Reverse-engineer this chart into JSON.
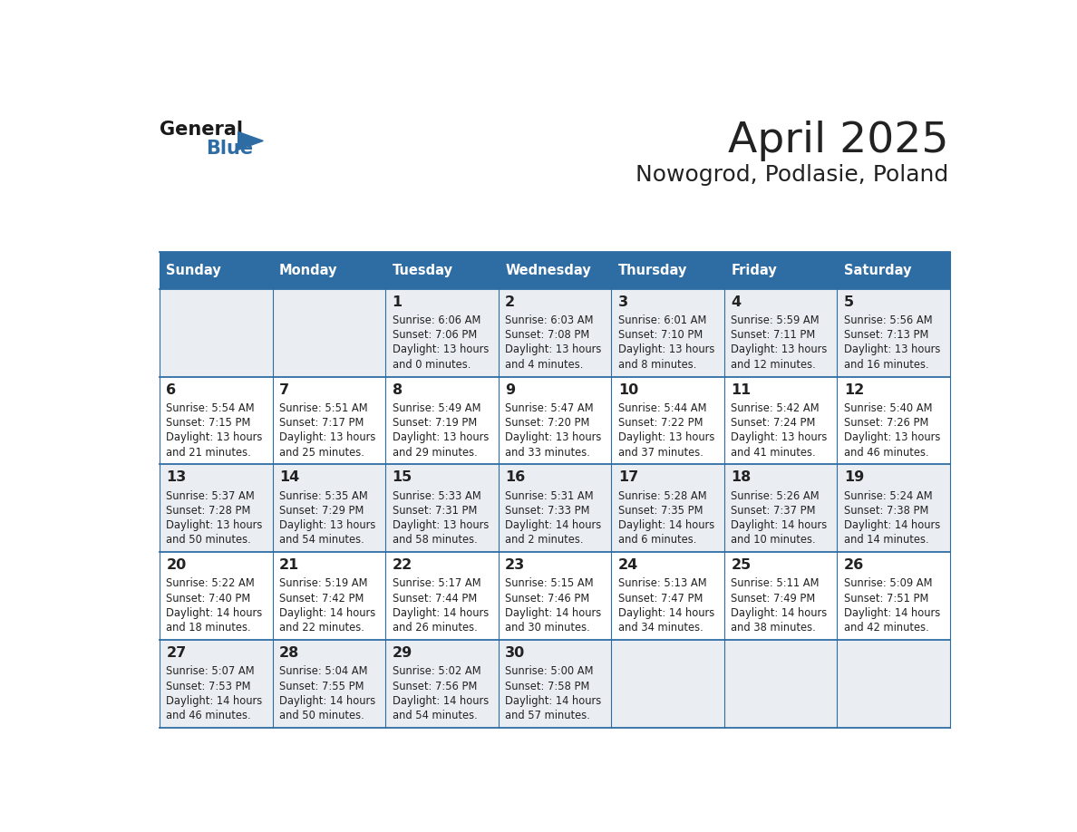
{
  "title": "April 2025",
  "subtitle": "Nowogrod, Podlasie, Poland",
  "days_of_week": [
    "Sunday",
    "Monday",
    "Tuesday",
    "Wednesday",
    "Thursday",
    "Friday",
    "Saturday"
  ],
  "header_bg": "#2E6DA4",
  "header_fg": "#FFFFFF",
  "row_bg_odd": "#EAEEF3",
  "row_bg_even": "#FFFFFF",
  "border_color": "#2E6DA4",
  "text_color": "#222222",
  "logo_general_color": "#1a1a1a",
  "logo_blue_color": "#2E6DA4",
  "weeks": [
    [
      {
        "day": null,
        "info": null
      },
      {
        "day": null,
        "info": null
      },
      {
        "day": 1,
        "info": "Sunrise: 6:06 AM\nSunset: 7:06 PM\nDaylight: 13 hours\nand 0 minutes."
      },
      {
        "day": 2,
        "info": "Sunrise: 6:03 AM\nSunset: 7:08 PM\nDaylight: 13 hours\nand 4 minutes."
      },
      {
        "day": 3,
        "info": "Sunrise: 6:01 AM\nSunset: 7:10 PM\nDaylight: 13 hours\nand 8 minutes."
      },
      {
        "day": 4,
        "info": "Sunrise: 5:59 AM\nSunset: 7:11 PM\nDaylight: 13 hours\nand 12 minutes."
      },
      {
        "day": 5,
        "info": "Sunrise: 5:56 AM\nSunset: 7:13 PM\nDaylight: 13 hours\nand 16 minutes."
      }
    ],
    [
      {
        "day": 6,
        "info": "Sunrise: 5:54 AM\nSunset: 7:15 PM\nDaylight: 13 hours\nand 21 minutes."
      },
      {
        "day": 7,
        "info": "Sunrise: 5:51 AM\nSunset: 7:17 PM\nDaylight: 13 hours\nand 25 minutes."
      },
      {
        "day": 8,
        "info": "Sunrise: 5:49 AM\nSunset: 7:19 PM\nDaylight: 13 hours\nand 29 minutes."
      },
      {
        "day": 9,
        "info": "Sunrise: 5:47 AM\nSunset: 7:20 PM\nDaylight: 13 hours\nand 33 minutes."
      },
      {
        "day": 10,
        "info": "Sunrise: 5:44 AM\nSunset: 7:22 PM\nDaylight: 13 hours\nand 37 minutes."
      },
      {
        "day": 11,
        "info": "Sunrise: 5:42 AM\nSunset: 7:24 PM\nDaylight: 13 hours\nand 41 minutes."
      },
      {
        "day": 12,
        "info": "Sunrise: 5:40 AM\nSunset: 7:26 PM\nDaylight: 13 hours\nand 46 minutes."
      }
    ],
    [
      {
        "day": 13,
        "info": "Sunrise: 5:37 AM\nSunset: 7:28 PM\nDaylight: 13 hours\nand 50 minutes."
      },
      {
        "day": 14,
        "info": "Sunrise: 5:35 AM\nSunset: 7:29 PM\nDaylight: 13 hours\nand 54 minutes."
      },
      {
        "day": 15,
        "info": "Sunrise: 5:33 AM\nSunset: 7:31 PM\nDaylight: 13 hours\nand 58 minutes."
      },
      {
        "day": 16,
        "info": "Sunrise: 5:31 AM\nSunset: 7:33 PM\nDaylight: 14 hours\nand 2 minutes."
      },
      {
        "day": 17,
        "info": "Sunrise: 5:28 AM\nSunset: 7:35 PM\nDaylight: 14 hours\nand 6 minutes."
      },
      {
        "day": 18,
        "info": "Sunrise: 5:26 AM\nSunset: 7:37 PM\nDaylight: 14 hours\nand 10 minutes."
      },
      {
        "day": 19,
        "info": "Sunrise: 5:24 AM\nSunset: 7:38 PM\nDaylight: 14 hours\nand 14 minutes."
      }
    ],
    [
      {
        "day": 20,
        "info": "Sunrise: 5:22 AM\nSunset: 7:40 PM\nDaylight: 14 hours\nand 18 minutes."
      },
      {
        "day": 21,
        "info": "Sunrise: 5:19 AM\nSunset: 7:42 PM\nDaylight: 14 hours\nand 22 minutes."
      },
      {
        "day": 22,
        "info": "Sunrise: 5:17 AM\nSunset: 7:44 PM\nDaylight: 14 hours\nand 26 minutes."
      },
      {
        "day": 23,
        "info": "Sunrise: 5:15 AM\nSunset: 7:46 PM\nDaylight: 14 hours\nand 30 minutes."
      },
      {
        "day": 24,
        "info": "Sunrise: 5:13 AM\nSunset: 7:47 PM\nDaylight: 14 hours\nand 34 minutes."
      },
      {
        "day": 25,
        "info": "Sunrise: 5:11 AM\nSunset: 7:49 PM\nDaylight: 14 hours\nand 38 minutes."
      },
      {
        "day": 26,
        "info": "Sunrise: 5:09 AM\nSunset: 7:51 PM\nDaylight: 14 hours\nand 42 minutes."
      }
    ],
    [
      {
        "day": 27,
        "info": "Sunrise: 5:07 AM\nSunset: 7:53 PM\nDaylight: 14 hours\nand 46 minutes."
      },
      {
        "day": 28,
        "info": "Sunrise: 5:04 AM\nSunset: 7:55 PM\nDaylight: 14 hours\nand 50 minutes."
      },
      {
        "day": 29,
        "info": "Sunrise: 5:02 AM\nSunset: 7:56 PM\nDaylight: 14 hours\nand 54 minutes."
      },
      {
        "day": 30,
        "info": "Sunrise: 5:00 AM\nSunset: 7:58 PM\nDaylight: 14 hours\nand 57 minutes."
      },
      {
        "day": null,
        "info": null
      },
      {
        "day": null,
        "info": null
      },
      {
        "day": null,
        "info": null
      }
    ]
  ]
}
